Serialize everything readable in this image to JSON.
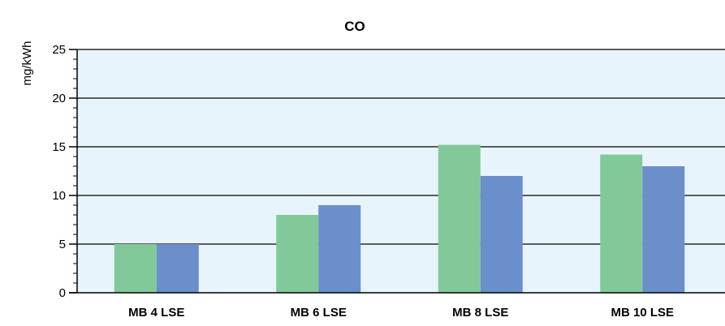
{
  "chart_data": {
    "type": "bar",
    "title": "CO",
    "xlabel": "",
    "ylabel": "mg/kWh",
    "ylim": [
      0,
      25
    ],
    "yticks": [
      0,
      5,
      10,
      15,
      20,
      25
    ],
    "grid": true,
    "legend": "none",
    "categories": [
      "MB 4 LSE",
      "MB 6 LSE",
      "MB 8 LSE",
      "MB 10 LSE"
    ],
    "series": [
      {
        "values": [
          5,
          8,
          15.2,
          14.2
        ],
        "color": "#82c99a"
      },
      {
        "values": [
          5,
          9,
          12,
          13
        ],
        "color": "#6b8fca"
      }
    ],
    "colors": {
      "plot_background": "#e8f4fb",
      "gridline": "#000000",
      "axis": "#000000"
    }
  }
}
